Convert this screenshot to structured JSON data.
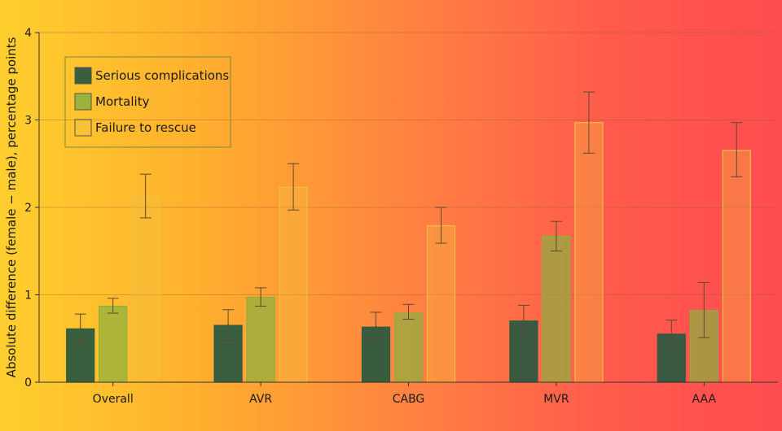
{
  "chart_data": {
    "type": "bar",
    "title": "",
    "xlabel": "",
    "ylabel": "Absolute difference (female − male), percentage points",
    "ylim": [
      0,
      4
    ],
    "yticks": [
      "0",
      "1",
      "2",
      "3",
      "4"
    ],
    "categories": [
      "Overall",
      "AVR",
      "CABG",
      "MVR",
      "AAA"
    ],
    "grid": true,
    "legend_position": "top-left",
    "series": [
      {
        "name": "Serious complications",
        "color": "#2e5a40",
        "values": [
          0.61,
          0.65,
          0.63,
          0.7,
          0.55
        ],
        "ci_low": [
          0.45,
          0.48,
          0.47,
          0.52,
          0.41
        ],
        "ci_high": [
          0.78,
          0.83,
          0.8,
          0.88,
          0.71
        ]
      },
      {
        "name": "Mortality",
        "color": "#8ab040",
        "values": [
          0.87,
          0.97,
          0.79,
          1.67,
          0.82
        ],
        "ci_low": [
          0.79,
          0.87,
          0.72,
          1.5,
          0.51
        ],
        "ci_high": [
          0.96,
          1.08,
          0.89,
          1.84,
          1.14
        ]
      },
      {
        "name": "Failure to rescue",
        "color": "#f0c040",
        "values": [
          2.12,
          2.23,
          1.79,
          2.97,
          2.65
        ],
        "ci_low": [
          1.88,
          1.97,
          1.59,
          2.62,
          2.35
        ],
        "ci_high": [
          2.38,
          2.5,
          2.0,
          3.32,
          2.97
        ]
      }
    ]
  }
}
